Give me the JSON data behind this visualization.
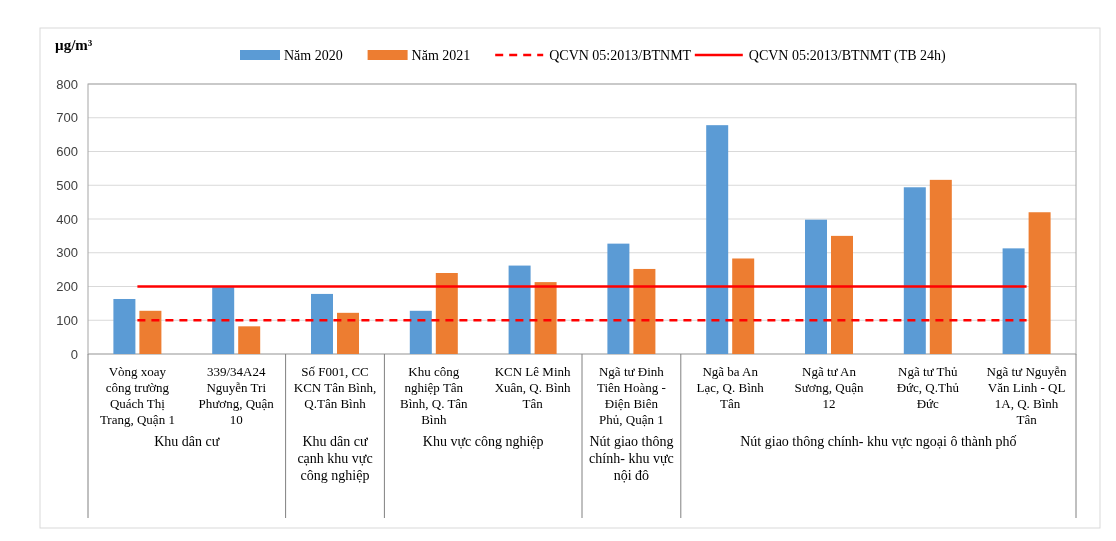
{
  "chart_data": {
    "type": "bar",
    "ylabel": "µg/m³",
    "categories": [
      "Vòng xoay công trường Quách Thị Trang, Quận 1",
      "339/34A24 Nguyễn Tri Phương, Quận 10",
      "Số F001, CC KCN Tân Bình, Q.Tân Bình",
      "Khu công nghiệp Tân Bình, Q. Tân Bình",
      "KCN Lê Minh Xuân, Q. Bình Tân",
      "Ngã tư Đinh Tiên Hoàng - Điện Biên Phủ, Quận 1",
      "Ngã ba An Lạc, Q. Bình Tân",
      "Ngã tư An Sương, Quận 12",
      "Ngã tư Thủ Đức, Q.Thủ Đức",
      "Ngã tư Nguyễn Văn Linh - QL 1A, Q. Bình Tân"
    ],
    "series": [
      {
        "name": "Năm 2020",
        "color": "#5b9bd5",
        "values": [
          163,
          198,
          178,
          128,
          262,
          327,
          678,
          398,
          494,
          313
        ]
      },
      {
        "name": "Năm 2021",
        "color": "#ed7d31",
        "values": [
          128,
          82,
          122,
          240,
          213,
          252,
          283,
          350,
          516,
          420
        ]
      },
      {
        "name": "QCVN 05:2013/BTNMT",
        "type": "line",
        "color": "#ff0000",
        "line_style": "dashed",
        "marker": "none",
        "values": [
          100,
          100,
          100,
          100,
          100,
          100,
          100,
          100,
          100,
          100
        ]
      },
      {
        "name": "QCVN 05:2013/BTNMT  (TB 24h)",
        "type": "line",
        "color": "#ff0000",
        "line_style": "solid",
        "marker": "none",
        "values": [
          200,
          200,
          200,
          200,
          200,
          200,
          200,
          200,
          200,
          200
        ]
      }
    ],
    "annotations": [
      "Khu dân cư",
      "Khu dân cư cạnh khu vực công nghiệp",
      "Khu vực công nghiệp",
      "Nút giao thông chính- khu vực nội đô",
      "Nút giao thông chính- khu vực ngoại ô thành phố"
    ],
    "ylim": [
      0,
      800
    ],
    "yticks": [
      0,
      100,
      200,
      300,
      400,
      500,
      600,
      700,
      800
    ],
    "grid": "y",
    "legend": "top"
  }
}
